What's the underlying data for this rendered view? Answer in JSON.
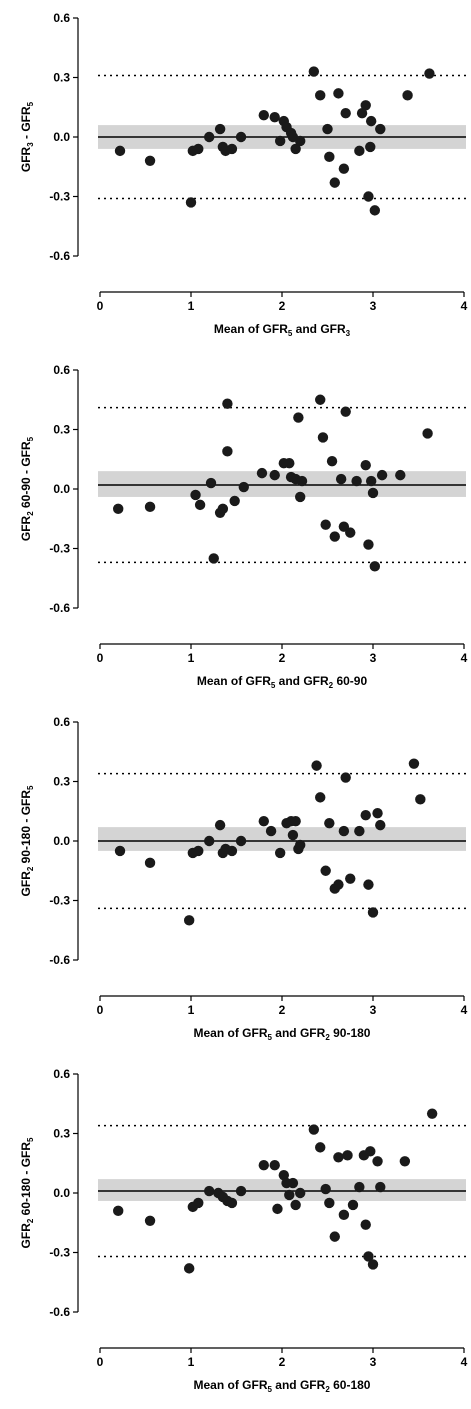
{
  "chart_data": [
    {
      "type": "scatter",
      "xlabel": {
        "parts": [
          [
            "Mean of GFR",
            ""
          ],
          [
            "5",
            "sub"
          ],
          [
            " and GFR",
            ""
          ],
          [
            "3",
            "sub"
          ]
        ]
      },
      "ylabel": {
        "parts": [
          [
            "GFR",
            ""
          ],
          [
            "3",
            "sub"
          ],
          [
            " - GFR",
            ""
          ],
          [
            "5",
            "sub"
          ]
        ]
      },
      "xlim": [
        0,
        4
      ],
      "ylim": [
        -0.6,
        0.6
      ],
      "x_ticks": [
        "0",
        "1",
        "2",
        "3",
        "4"
      ],
      "y_ticks": [
        "0.6",
        "0.3",
        "0.0",
        "-0.3",
        "-0.6"
      ],
      "mean_line": 0.0,
      "ci_band": [
        -0.06,
        0.06
      ],
      "limits_of_agreement": [
        0.31,
        -0.31
      ],
      "points": [
        [
          0.22,
          -0.07
        ],
        [
          0.55,
          -0.12
        ],
        [
          1.0,
          -0.33
        ],
        [
          1.02,
          -0.07
        ],
        [
          1.08,
          -0.06
        ],
        [
          1.2,
          0.0
        ],
        [
          1.32,
          0.04
        ],
        [
          1.35,
          -0.05
        ],
        [
          1.38,
          -0.07
        ],
        [
          1.45,
          -0.06
        ],
        [
          1.55,
          0.0
        ],
        [
          1.8,
          0.11
        ],
        [
          1.92,
          0.1
        ],
        [
          1.98,
          -0.02
        ],
        [
          2.02,
          0.08
        ],
        [
          2.05,
          0.05
        ],
        [
          2.1,
          0.02
        ],
        [
          2.12,
          0.0
        ],
        [
          2.15,
          -0.06
        ],
        [
          2.2,
          -0.02
        ],
        [
          2.35,
          0.33
        ],
        [
          2.42,
          0.21
        ],
        [
          2.5,
          0.04
        ],
        [
          2.52,
          -0.1
        ],
        [
          2.58,
          -0.23
        ],
        [
          2.62,
          0.22
        ],
        [
          2.68,
          -0.16
        ],
        [
          2.7,
          0.12
        ],
        [
          2.85,
          -0.07
        ],
        [
          2.88,
          0.12
        ],
        [
          2.92,
          0.16
        ],
        [
          2.95,
          -0.3
        ],
        [
          2.97,
          -0.05
        ],
        [
          2.98,
          0.08
        ],
        [
          3.02,
          -0.37
        ],
        [
          3.08,
          0.04
        ],
        [
          3.38,
          0.21
        ],
        [
          3.62,
          0.32
        ]
      ]
    },
    {
      "type": "scatter",
      "xlabel": {
        "parts": [
          [
            "Mean of GFR",
            ""
          ],
          [
            "5",
            "sub"
          ],
          [
            " and GFR",
            ""
          ],
          [
            "2",
            "sub"
          ],
          [
            " 60-90",
            ""
          ]
        ]
      },
      "ylabel": {
        "parts": [
          [
            "GFR",
            ""
          ],
          [
            "2",
            "sub"
          ],
          [
            " 60-90 - GFR",
            ""
          ],
          [
            "5",
            "sub"
          ]
        ]
      },
      "xlim": [
        0,
        4
      ],
      "ylim": [
        -0.6,
        0.6
      ],
      "x_ticks": [
        "0",
        "1",
        "2",
        "3",
        "4"
      ],
      "y_ticks": [
        "0.6",
        "0.3",
        "0.0",
        "-0.3",
        "-0.6"
      ],
      "mean_line": 0.02,
      "ci_band": [
        -0.04,
        0.09
      ],
      "limits_of_agreement": [
        0.41,
        -0.37
      ],
      "points": [
        [
          0.2,
          -0.1
        ],
        [
          0.55,
          -0.09
        ],
        [
          1.05,
          -0.03
        ],
        [
          1.1,
          -0.08
        ],
        [
          1.22,
          0.03
        ],
        [
          1.25,
          -0.35
        ],
        [
          1.32,
          -0.12
        ],
        [
          1.35,
          -0.1
        ],
        [
          1.4,
          0.19
        ],
        [
          1.4,
          0.43
        ],
        [
          1.48,
          -0.06
        ],
        [
          1.58,
          0.01
        ],
        [
          1.78,
          0.08
        ],
        [
          1.92,
          0.07
        ],
        [
          2.02,
          0.13
        ],
        [
          2.08,
          0.13
        ],
        [
          2.1,
          0.06
        ],
        [
          2.15,
          0.05
        ],
        [
          2.18,
          0.36
        ],
        [
          2.2,
          -0.04
        ],
        [
          2.22,
          0.04
        ],
        [
          2.42,
          0.45
        ],
        [
          2.45,
          0.26
        ],
        [
          2.48,
          -0.18
        ],
        [
          2.55,
          0.14
        ],
        [
          2.58,
          -0.24
        ],
        [
          2.65,
          0.05
        ],
        [
          2.68,
          -0.19
        ],
        [
          2.7,
          0.39
        ],
        [
          2.75,
          -0.22
        ],
        [
          2.82,
          0.04
        ],
        [
          2.92,
          0.12
        ],
        [
          2.95,
          -0.28
        ],
        [
          2.98,
          0.04
        ],
        [
          3.0,
          -0.02
        ],
        [
          3.02,
          -0.39
        ],
        [
          3.1,
          0.07
        ],
        [
          3.3,
          0.07
        ],
        [
          3.6,
          0.28
        ]
      ]
    },
    {
      "type": "scatter",
      "xlabel": {
        "parts": [
          [
            "Mean of GFR",
            ""
          ],
          [
            "5",
            "sub"
          ],
          [
            " and GFR",
            ""
          ],
          [
            "2",
            "sub"
          ],
          [
            " 90-180",
            ""
          ]
        ]
      },
      "ylabel": {
        "parts": [
          [
            "GFR",
            ""
          ],
          [
            "2",
            "sub"
          ],
          [
            " 90-180 - GFR",
            ""
          ],
          [
            "5",
            "sub"
          ]
        ]
      },
      "xlim": [
        0,
        4
      ],
      "ylim": [
        -0.6,
        0.6
      ],
      "x_ticks": [
        "0",
        "1",
        "2",
        "3",
        "4"
      ],
      "y_ticks": [
        "0.6",
        "0.3",
        "0.0",
        "-0.3",
        "-0.6"
      ],
      "mean_line": 0.0,
      "ci_band": [
        -0.05,
        0.07
      ],
      "limits_of_agreement": [
        0.34,
        -0.34
      ],
      "points": [
        [
          0.22,
          -0.05
        ],
        [
          0.55,
          -0.11
        ],
        [
          0.98,
          -0.4
        ],
        [
          1.02,
          -0.06
        ],
        [
          1.08,
          -0.05
        ],
        [
          1.2,
          0.0
        ],
        [
          1.32,
          0.08
        ],
        [
          1.35,
          -0.06
        ],
        [
          1.38,
          -0.04
        ],
        [
          1.45,
          -0.05
        ],
        [
          1.55,
          0.0
        ],
        [
          1.8,
          0.1
        ],
        [
          1.88,
          0.05
        ],
        [
          1.98,
          -0.06
        ],
        [
          2.05,
          0.09
        ],
        [
          2.1,
          0.1
        ],
        [
          2.12,
          0.03
        ],
        [
          2.15,
          0.1
        ],
        [
          2.18,
          -0.04
        ],
        [
          2.2,
          -0.02
        ],
        [
          2.38,
          0.38
        ],
        [
          2.42,
          0.22
        ],
        [
          2.48,
          -0.15
        ],
        [
          2.52,
          0.09
        ],
        [
          2.58,
          -0.24
        ],
        [
          2.62,
          -0.22
        ],
        [
          2.68,
          0.05
        ],
        [
          2.7,
          0.32
        ],
        [
          2.75,
          -0.19
        ],
        [
          2.85,
          0.05
        ],
        [
          2.92,
          0.13
        ],
        [
          2.95,
          -0.22
        ],
        [
          3.0,
          -0.36
        ],
        [
          3.05,
          0.14
        ],
        [
          3.08,
          0.08
        ],
        [
          3.45,
          0.39
        ],
        [
          3.52,
          0.21
        ]
      ]
    },
    {
      "type": "scatter",
      "xlabel": {
        "parts": [
          [
            "Mean of GFR",
            ""
          ],
          [
            "5",
            "sub"
          ],
          [
            " and GFR",
            ""
          ],
          [
            "2",
            "sub"
          ],
          [
            " 60-180",
            ""
          ]
        ]
      },
      "ylabel": {
        "parts": [
          [
            "GFR",
            ""
          ],
          [
            "2",
            "sub"
          ],
          [
            " 60-180 - GFR",
            ""
          ],
          [
            "5",
            "sub"
          ]
        ]
      },
      "xlim": [
        0,
        4
      ],
      "ylim": [
        -0.6,
        0.6
      ],
      "x_ticks": [
        "0",
        "1",
        "2",
        "3",
        "4"
      ],
      "y_ticks": [
        "0.6",
        "0.3",
        "0.0",
        "-0.3",
        "-0.6"
      ],
      "mean_line": 0.01,
      "ci_band": [
        -0.04,
        0.07
      ],
      "limits_of_agreement": [
        0.34,
        -0.32
      ],
      "points": [
        [
          0.2,
          -0.09
        ],
        [
          0.55,
          -0.14
        ],
        [
          0.98,
          -0.38
        ],
        [
          1.02,
          -0.07
        ],
        [
          1.08,
          -0.05
        ],
        [
          1.2,
          0.01
        ],
        [
          1.3,
          0.0
        ],
        [
          1.35,
          -0.02
        ],
        [
          1.4,
          -0.04
        ],
        [
          1.45,
          -0.05
        ],
        [
          1.55,
          0.01
        ],
        [
          1.8,
          0.14
        ],
        [
          1.92,
          0.14
        ],
        [
          1.95,
          -0.08
        ],
        [
          2.02,
          0.09
        ],
        [
          2.05,
          0.05
        ],
        [
          2.08,
          -0.01
        ],
        [
          2.12,
          0.05
        ],
        [
          2.15,
          -0.06
        ],
        [
          2.2,
          0.0
        ],
        [
          2.35,
          0.32
        ],
        [
          2.42,
          0.23
        ],
        [
          2.48,
          0.02
        ],
        [
          2.52,
          -0.05
        ],
        [
          2.58,
          -0.22
        ],
        [
          2.62,
          0.18
        ],
        [
          2.68,
          -0.11
        ],
        [
          2.72,
          0.19
        ],
        [
          2.78,
          -0.06
        ],
        [
          2.85,
          0.03
        ],
        [
          2.9,
          0.19
        ],
        [
          2.92,
          -0.16
        ],
        [
          2.95,
          -0.32
        ],
        [
          2.97,
          0.21
        ],
        [
          3.0,
          -0.36
        ],
        [
          3.05,
          0.16
        ],
        [
          3.08,
          0.03
        ],
        [
          3.35,
          0.16
        ],
        [
          3.65,
          0.4
        ]
      ]
    }
  ]
}
